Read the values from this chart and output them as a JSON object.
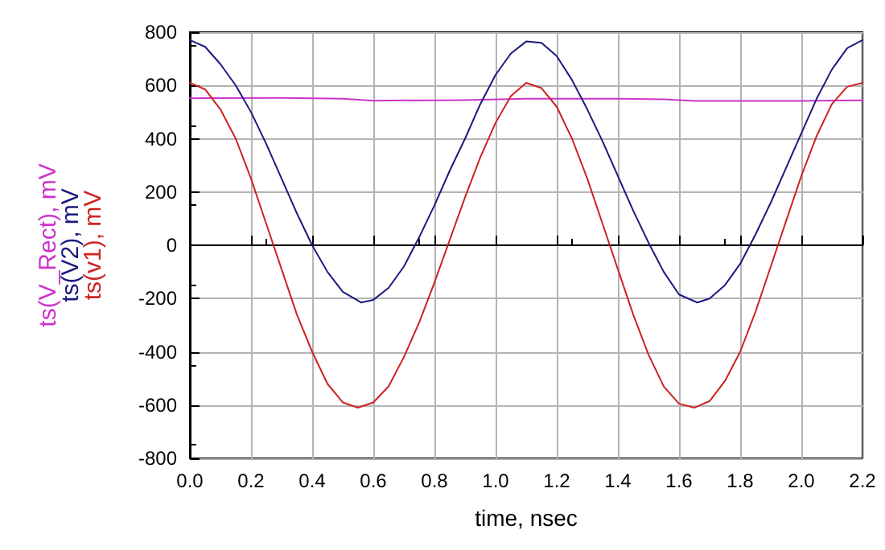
{
  "chart_data": {
    "type": "line",
    "xlabel": "time, nsec",
    "grid": true,
    "legend": "left",
    "marker": "none",
    "line_style": "solid",
    "xlim": [
      0,
      2.2
    ],
    "xticks": [
      {
        "value": 0,
        "label": "0.0"
      },
      {
        "value": 0.2,
        "label": "0.2"
      },
      {
        "value": 0.4,
        "label": "0.4"
      },
      {
        "value": 0.6,
        "label": "0.6"
      },
      {
        "value": 0.8,
        "label": "0.8"
      },
      {
        "value": 1,
        "label": "1.0"
      },
      {
        "value": 1.2,
        "label": "1.2"
      },
      {
        "value": 1.4,
        "label": "1.4"
      },
      {
        "value": 1.6,
        "label": "1.6"
      },
      {
        "value": 1.8,
        "label": "1.8"
      },
      {
        "value": 2,
        "label": "2.0"
      },
      {
        "value": 2.2,
        "label": "2.2"
      }
    ],
    "ylim": [
      -800,
      800
    ],
    "yticks": [
      -800,
      -600,
      -400,
      -200,
      0,
      200,
      400,
      600,
      800
    ],
    "series": [
      {
        "name": "ts(V_Rect), mV",
        "color": "#cc33cc",
        "x": [
          0,
          0.3,
          0.5,
          0.6,
          0.9,
          1.1,
          1.4,
          1.55,
          1.65,
          2.0,
          2.2
        ],
        "values": [
          552,
          553,
          550,
          543,
          545,
          550,
          550,
          548,
          542,
          542,
          544
        ]
      },
      {
        "name": "ts(V2), mV",
        "color": "#1a1a80",
        "x": [
          0,
          0.05,
          0.1,
          0.15,
          0.2,
          0.25,
          0.3,
          0.35,
          0.4,
          0.45,
          0.5,
          0.56,
          0.6,
          0.65,
          0.7,
          0.75,
          0.8,
          0.85,
          0.9,
          0.95,
          1.0,
          1.05,
          1.1,
          1.15,
          1.2,
          1.25,
          1.3,
          1.35,
          1.4,
          1.45,
          1.5,
          1.55,
          1.6,
          1.66,
          1.7,
          1.75,
          1.8,
          1.85,
          1.9,
          1.95,
          2.0,
          2.05,
          2.1,
          2.15,
          2.2
        ],
        "values": [
          770,
          745,
          680,
          600,
          500,
          380,
          250,
          120,
          0,
          -100,
          -175,
          -215,
          -205,
          -160,
          -80,
          30,
          150,
          280,
          400,
          530,
          640,
          720,
          765,
          760,
          710,
          620,
          510,
          390,
          260,
          130,
          10,
          -100,
          -185,
          -215,
          -200,
          -150,
          -70,
          40,
          160,
          290,
          420,
          550,
          660,
          740,
          770
        ]
      },
      {
        "name": "ts(v1), mV",
        "color": "#cc2222",
        "x": [
          0,
          0.05,
          0.1,
          0.15,
          0.2,
          0.25,
          0.3,
          0.35,
          0.4,
          0.45,
          0.5,
          0.55,
          0.6,
          0.65,
          0.7,
          0.75,
          0.8,
          0.85,
          0.9,
          0.95,
          1.0,
          1.05,
          1.1,
          1.15,
          1.2,
          1.25,
          1.3,
          1.35,
          1.4,
          1.45,
          1.5,
          1.55,
          1.6,
          1.65,
          1.7,
          1.75,
          1.8,
          1.85,
          1.9,
          1.95,
          2.0,
          2.05,
          2.1,
          2.15,
          2.2
        ],
        "values": [
          610,
          585,
          510,
          400,
          250,
          80,
          -90,
          -260,
          -400,
          -520,
          -590,
          -610,
          -590,
          -530,
          -420,
          -290,
          -140,
          20,
          180,
          330,
          460,
          560,
          610,
          590,
          520,
          400,
          250,
          80,
          -90,
          -260,
          -410,
          -530,
          -595,
          -610,
          -585,
          -510,
          -400,
          -250,
          -80,
          90,
          260,
          410,
          530,
          595,
          610
        ]
      }
    ]
  }
}
